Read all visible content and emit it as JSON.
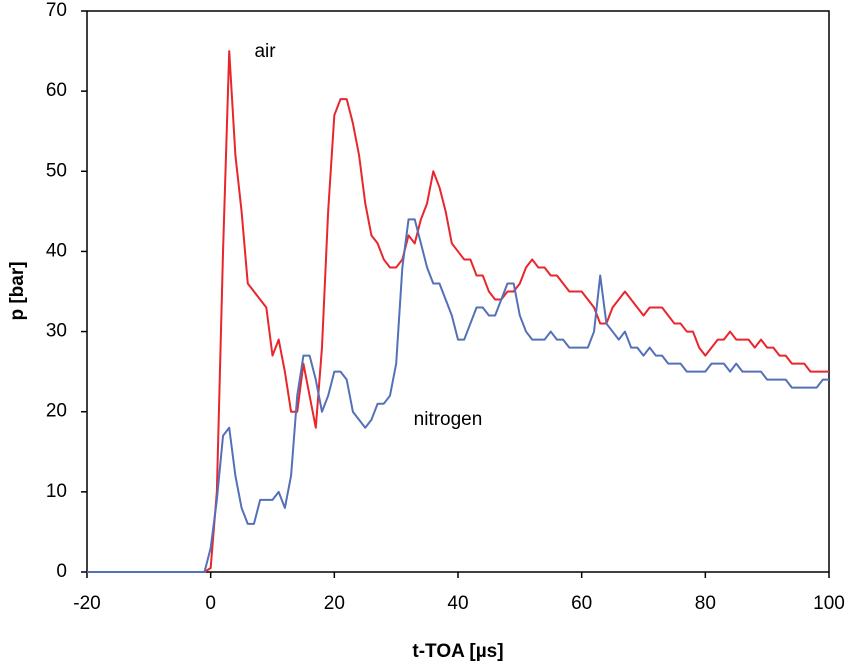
{
  "chart_data": {
    "type": "line",
    "xlabel": "t-TOA [µs]",
    "ylabel": "p [bar]",
    "xlim": [
      -20,
      100
    ],
    "ylim": [
      0,
      70
    ],
    "xticks": [
      -20,
      0,
      20,
      40,
      60,
      80,
      100
    ],
    "yticks": [
      0,
      10,
      20,
      30,
      40,
      50,
      60,
      70
    ],
    "grid": false,
    "annotations": [
      "air",
      "nitrogen"
    ],
    "x": [
      -20,
      -1,
      0,
      1,
      2,
      3,
      4,
      5,
      6,
      7,
      8,
      9,
      10,
      11,
      12,
      13,
      14,
      15,
      16,
      17,
      18,
      19,
      20,
      21,
      22,
      23,
      24,
      25,
      26,
      27,
      28,
      29,
      30,
      31,
      32,
      33,
      34,
      35,
      36,
      37,
      38,
      39,
      40,
      41,
      42,
      43,
      44,
      45,
      46,
      47,
      48,
      49,
      50,
      51,
      52,
      53,
      54,
      55,
      56,
      57,
      58,
      59,
      60,
      61,
      62,
      63,
      64,
      65,
      66,
      67,
      68,
      69,
      70,
      71,
      72,
      73,
      74,
      75,
      76,
      77,
      78,
      79,
      80,
      81,
      82,
      83,
      84,
      85,
      86,
      87,
      88,
      89,
      90,
      91,
      92,
      93,
      94,
      95,
      96,
      97,
      98,
      99,
      100
    ],
    "series": [
      {
        "name": "air",
        "color": "#e8262b",
        "values": [
          0,
          0,
          0.5,
          10,
          40,
          65,
          52,
          45,
          36,
          35,
          34,
          33,
          27,
          29,
          25,
          20,
          20,
          26,
          22,
          18,
          28,
          45,
          57,
          59,
          59,
          56,
          52,
          46,
          42,
          41,
          39,
          38,
          38,
          39,
          42,
          41,
          44,
          46,
          50,
          48,
          45,
          41,
          40,
          39,
          39,
          37,
          37,
          35,
          34,
          34,
          35,
          35,
          36,
          38,
          39,
          38,
          38,
          37,
          37,
          36,
          35,
          35,
          35,
          34,
          33,
          31,
          31,
          33,
          34,
          35,
          34,
          33,
          32,
          33,
          33,
          33,
          32,
          31,
          31,
          30,
          30,
          28,
          27,
          28,
          29,
          29,
          30,
          29,
          29,
          29,
          28,
          29,
          28,
          28,
          27,
          27,
          26,
          26,
          26,
          25,
          25,
          25,
          25
        ]
      },
      {
        "name": "nitrogen",
        "color": "#5470b8",
        "values": [
          0,
          0,
          3,
          9,
          17,
          18,
          12,
          8,
          6,
          6,
          9,
          9,
          9,
          10,
          8,
          12,
          22,
          27,
          27,
          24,
          20,
          22,
          25,
          25,
          24,
          20,
          19,
          18,
          19,
          21,
          21,
          22,
          26,
          38,
          44,
          44,
          41,
          38,
          36,
          36,
          34,
          32,
          29,
          29,
          31,
          33,
          33,
          32,
          32,
          34,
          36,
          36,
          32,
          30,
          29,
          29,
          29,
          30,
          29,
          29,
          28,
          28,
          28,
          28,
          30,
          37,
          31,
          30,
          29,
          30,
          28,
          28,
          27,
          28,
          27,
          27,
          26,
          26,
          26,
          25,
          25,
          25,
          25,
          26,
          26,
          26,
          25,
          26,
          25,
          25,
          25,
          25,
          24,
          24,
          24,
          24,
          23,
          23,
          23,
          23,
          23,
          24,
          24
        ]
      }
    ]
  }
}
